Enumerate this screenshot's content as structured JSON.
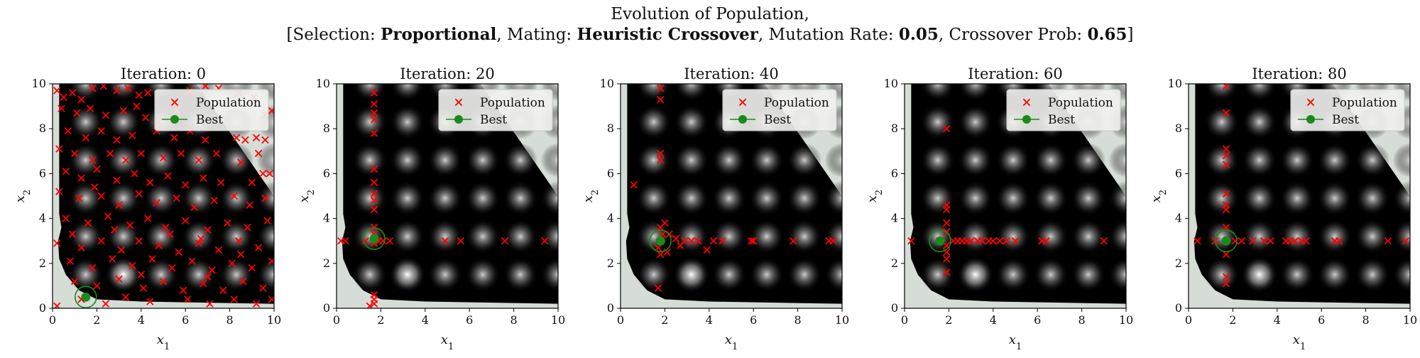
{
  "figure": {
    "title_line1": "Evolution of Population,",
    "title_parts": [
      {
        "text": "[Selection: ",
        "bold": false
      },
      {
        "text": "Proportional",
        "bold": true
      },
      {
        "text": ", Mating: ",
        "bold": false
      },
      {
        "text": "Heuristic Crossover",
        "bold": true
      },
      {
        "text": ", Mutation Rate: ",
        "bold": false
      },
      {
        "text": "0.05",
        "bold": true
      },
      {
        "text": ", Crossover Prob: ",
        "bold": false
      },
      {
        "text": "0.65",
        "bold": true
      },
      {
        "text": "]",
        "bold": false
      }
    ]
  },
  "colors": {
    "population": "#ff0000",
    "best": "#1a8a1a",
    "infeasible": "#d6dcd6",
    "background": "#000000"
  },
  "chart_data": [
    {
      "type": "scatter",
      "title": "Iteration: 0",
      "xlabel": "x1",
      "ylabel": "x2",
      "xlim": [
        0,
        10
      ],
      "ylim": [
        0,
        10
      ],
      "xticks": [
        0,
        2,
        4,
        6,
        8,
        10
      ],
      "yticks": [
        0,
        2,
        4,
        6,
        8,
        10
      ],
      "legend": {
        "position": "upper-right",
        "entries": [
          "Population",
          "Best"
        ]
      },
      "best": [
        1.5,
        0.5
      ],
      "population": [
        [
          0.2,
          9.7
        ],
        [
          0.5,
          9.4
        ],
        [
          0.9,
          9.6
        ],
        [
          1.3,
          9.3
        ],
        [
          1.8,
          9.8
        ],
        [
          2.3,
          9.9
        ],
        [
          2.9,
          9.7
        ],
        [
          3.4,
          9.8
        ],
        [
          3.9,
          9.5
        ],
        [
          4.3,
          9.6
        ],
        [
          0.4,
          8.9
        ],
        [
          1.1,
          8.7
        ],
        [
          1.7,
          8.9
        ],
        [
          2.4,
          8.6
        ],
        [
          3.2,
          8.8
        ],
        [
          4.2,
          8.5
        ],
        [
          6.2,
          9.7
        ],
        [
          6.9,
          9.9
        ],
        [
          7.5,
          9.8
        ],
        [
          8.4,
          9.6
        ],
        [
          9.1,
          9.4
        ],
        [
          9.6,
          8.6
        ],
        [
          9.9,
          8.8
        ],
        [
          8.3,
          7.6
        ],
        [
          8.7,
          7.5
        ],
        [
          9.2,
          7.6
        ],
        [
          9.6,
          7.5
        ],
        [
          0.7,
          7.9
        ],
        [
          1.5,
          7.6
        ],
        [
          2.2,
          7.9
        ],
        [
          2.9,
          7.5
        ],
        [
          3.6,
          7.7
        ],
        [
          4.7,
          7.9
        ],
        [
          5.5,
          7.6
        ],
        [
          6.2,
          7.9
        ],
        [
          6.9,
          7.5
        ],
        [
          0.3,
          7.1
        ],
        [
          1.0,
          6.9
        ],
        [
          1.8,
          6.6
        ],
        [
          2.6,
          6.9
        ],
        [
          3.3,
          6.6
        ],
        [
          4.0,
          6.9
        ],
        [
          5.0,
          6.7
        ],
        [
          5.8,
          6.9
        ],
        [
          6.6,
          6.6
        ],
        [
          7.4,
          6.9
        ],
        [
          0.6,
          6.1
        ],
        [
          1.3,
          5.8
        ],
        [
          2.0,
          6.2
        ],
        [
          2.9,
          5.7
        ],
        [
          3.7,
          6.0
        ],
        [
          4.4,
          5.6
        ],
        [
          5.2,
          5.9
        ],
        [
          6.0,
          5.5
        ],
        [
          6.8,
          5.8
        ],
        [
          7.6,
          5.6
        ],
        [
          9.5,
          6.0
        ],
        [
          9.8,
          6.0
        ],
        [
          0.3,
          5.2
        ],
        [
          1.2,
          4.9
        ],
        [
          2.2,
          5.0
        ],
        [
          3.0,
          4.6
        ],
        [
          3.9,
          5.1
        ],
        [
          4.7,
          4.7
        ],
        [
          5.6,
          4.9
        ],
        [
          6.4,
          4.5
        ],
        [
          7.3,
          4.8
        ],
        [
          8.2,
          5.0
        ],
        [
          8.9,
          4.6
        ],
        [
          9.6,
          4.9
        ],
        [
          0.6,
          4.0
        ],
        [
          1.6,
          3.8
        ],
        [
          2.5,
          4.1
        ],
        [
          3.5,
          3.7
        ],
        [
          4.3,
          4.0
        ],
        [
          5.1,
          3.6
        ],
        [
          6.0,
          3.9
        ],
        [
          7.0,
          3.5
        ],
        [
          7.9,
          3.8
        ],
        [
          8.8,
          3.6
        ],
        [
          9.7,
          3.9
        ],
        [
          0.2,
          2.9
        ],
        [
          1.3,
          2.7
        ],
        [
          2.2,
          3.0
        ],
        [
          3.1,
          2.6
        ],
        [
          3.9,
          3.0
        ],
        [
          4.8,
          2.8
        ],
        [
          5.7,
          2.5
        ],
        [
          6.6,
          2.9
        ],
        [
          7.5,
          2.6
        ],
        [
          8.4,
          3.0
        ],
        [
          9.3,
          2.7
        ],
        [
          0.8,
          2.1
        ],
        [
          1.8,
          1.8
        ],
        [
          2.7,
          2.2
        ],
        [
          3.6,
          1.9
        ],
        [
          4.5,
          2.2
        ],
        [
          5.4,
          1.8
        ],
        [
          6.3,
          2.1
        ],
        [
          7.2,
          1.7
        ],
        [
          8.1,
          2.0
        ],
        [
          9.0,
          1.8
        ],
        [
          9.9,
          2.1
        ],
        [
          1.0,
          1.2
        ],
        [
          2.0,
          1.0
        ],
        [
          3.0,
          1.3
        ],
        [
          4.1,
          0.9
        ],
        [
          5.0,
          1.2
        ],
        [
          5.9,
          0.8
        ],
        [
          6.8,
          1.1
        ],
        [
          7.7,
          0.8
        ],
        [
          8.6,
          1.2
        ],
        [
          9.5,
          0.9
        ],
        [
          1.3,
          0.4
        ],
        [
          2.4,
          0.2
        ],
        [
          3.3,
          0.5
        ],
        [
          4.4,
          0.3
        ],
        [
          6.1,
          0.4
        ],
        [
          7.1,
          0.2
        ],
        [
          8.2,
          0.4
        ],
        [
          9.2,
          0.2
        ],
        [
          0.2,
          0.1
        ],
        [
          9.9,
          0.4
        ],
        [
          9.0,
          5.6
        ],
        [
          8.5,
          6.5
        ],
        [
          9.3,
          6.9
        ],
        [
          4.8,
          8.3
        ],
        [
          5.6,
          8.8
        ],
        [
          3.8,
          9.0
        ],
        [
          1.9,
          5.4
        ],
        [
          2.8,
          3.5
        ],
        [
          0.9,
          3.3
        ],
        [
          6.7,
          3.1
        ],
        [
          8.5,
          2.4
        ],
        [
          4.0,
          1.5
        ],
        [
          7.0,
          1.4
        ],
        [
          5.3,
          3.3
        ]
      ]
    },
    {
      "type": "scatter",
      "title": "Iteration: 20",
      "xlabel": "x1",
      "ylabel": "x2",
      "xlim": [
        0,
        10
      ],
      "ylim": [
        0,
        10
      ],
      "xticks": [
        0,
        2,
        4,
        6,
        8,
        10
      ],
      "yticks": [
        0,
        2,
        4,
        6,
        8,
        10
      ],
      "legend": {
        "position": "upper-right",
        "entries": [
          "Population",
          "Best"
        ]
      },
      "best": [
        1.7,
        3.1
      ],
      "population": [
        [
          1.7,
          9.6
        ],
        [
          1.7,
          9.1
        ],
        [
          1.7,
          8.7
        ],
        [
          1.7,
          8.4
        ],
        [
          1.7,
          7.8
        ],
        [
          1.7,
          6.2
        ],
        [
          1.7,
          5.6
        ],
        [
          1.7,
          5.1
        ],
        [
          1.7,
          4.8
        ],
        [
          1.7,
          4.4
        ],
        [
          1.7,
          3.6
        ],
        [
          1.7,
          3.3
        ],
        [
          1.7,
          2.9
        ],
        [
          1.7,
          0.6
        ],
        [
          1.7,
          0.4
        ],
        [
          1.7,
          0.2
        ],
        [
          1.5,
          0.1
        ],
        [
          0.2,
          3.0
        ],
        [
          0.4,
          3.0
        ],
        [
          1.3,
          3.0
        ],
        [
          1.9,
          3.0
        ],
        [
          2.1,
          3.0
        ],
        [
          2.4,
          3.0
        ],
        [
          4.9,
          3.0
        ],
        [
          5.6,
          3.0
        ],
        [
          7.6,
          3.0
        ],
        [
          9.4,
          3.0
        ]
      ]
    },
    {
      "type": "scatter",
      "title": "Iteration: 40",
      "xlabel": "x1",
      "ylabel": "x2",
      "xlim": [
        0,
        10
      ],
      "ylim": [
        0,
        10
      ],
      "xticks": [
        0,
        2,
        4,
        6,
        8,
        10
      ],
      "yticks": [
        0,
        2,
        4,
        6,
        8,
        10
      ],
      "legend": {
        "position": "upper-right",
        "entries": [
          "Population",
          "Best"
        ]
      },
      "best": [
        1.8,
        3.0
      ],
      "population": [
        [
          1.8,
          9.8
        ],
        [
          1.8,
          9.3
        ],
        [
          1.8,
          6.9
        ],
        [
          1.8,
          6.6
        ],
        [
          0.6,
          5.5
        ],
        [
          1.8,
          3.6
        ],
        [
          2.0,
          3.8
        ],
        [
          1.9,
          3.3
        ],
        [
          1.7,
          2.7
        ],
        [
          1.8,
          2.4
        ],
        [
          2.1,
          2.5
        ],
        [
          2.5,
          3.1
        ],
        [
          2.2,
          3.3
        ],
        [
          2.7,
          2.8
        ],
        [
          2.9,
          3.0
        ],
        [
          3.2,
          3.0
        ],
        [
          3.5,
          3.0
        ],
        [
          4.2,
          3.0
        ],
        [
          4.6,
          3.0
        ],
        [
          5.9,
          3.0
        ],
        [
          6.0,
          3.0
        ],
        [
          7.8,
          3.0
        ],
        [
          9.4,
          3.0
        ],
        [
          9.6,
          3.0
        ],
        [
          3.9,
          2.6
        ],
        [
          1.7,
          0.9
        ]
      ]
    },
    {
      "type": "scatter",
      "title": "Iteration: 60",
      "xlabel": "x1",
      "ylabel": "x2",
      "xlim": [
        0,
        10
      ],
      "ylim": [
        0,
        10
      ],
      "xticks": [
        0,
        2,
        4,
        6,
        8,
        10
      ],
      "yticks": [
        0,
        2,
        4,
        6,
        8,
        10
      ],
      "legend": {
        "position": "upper-right",
        "entries": [
          "Population",
          "Best"
        ]
      },
      "best": [
        1.6,
        3.0
      ],
      "population": [
        [
          1.9,
          8.0
        ],
        [
          1.9,
          4.6
        ],
        [
          1.9,
          4.4
        ],
        [
          1.9,
          3.8
        ],
        [
          1.9,
          3.4
        ],
        [
          1.9,
          2.8
        ],
        [
          1.9,
          2.5
        ],
        [
          1.9,
          2.2
        ],
        [
          1.9,
          1.6
        ],
        [
          0.3,
          3.0
        ],
        [
          1.6,
          3.0
        ],
        [
          2.2,
          3.0
        ],
        [
          2.4,
          3.0
        ],
        [
          2.6,
          3.0
        ],
        [
          2.8,
          3.0
        ],
        [
          3.0,
          3.0
        ],
        [
          3.3,
          3.0
        ],
        [
          3.5,
          3.0
        ],
        [
          3.8,
          3.0
        ],
        [
          4.0,
          3.0
        ],
        [
          4.3,
          3.0
        ],
        [
          4.6,
          3.0
        ],
        [
          5.0,
          3.0
        ],
        [
          6.2,
          3.0
        ],
        [
          6.4,
          3.0
        ],
        [
          9.0,
          3.0
        ]
      ]
    },
    {
      "type": "scatter",
      "title": "Iteration: 80",
      "xlabel": "x1",
      "ylabel": "x2",
      "xlim": [
        0,
        10
      ],
      "ylim": [
        0,
        10
      ],
      "xticks": [
        0,
        2,
        4,
        6,
        8,
        10
      ],
      "yticks": [
        0,
        2,
        4,
        6,
        8,
        10
      ],
      "legend": {
        "position": "upper-right",
        "entries": [
          "Population",
          "Best"
        ]
      },
      "best": [
        1.7,
        3.0
      ],
      "population": [
        [
          1.7,
          9.9
        ],
        [
          1.7,
          8.7
        ],
        [
          1.7,
          7.1
        ],
        [
          1.7,
          6.8
        ],
        [
          1.7,
          6.4
        ],
        [
          1.7,
          5.1
        ],
        [
          1.7,
          4.6
        ],
        [
          1.7,
          4.4
        ],
        [
          1.7,
          3.6
        ],
        [
          1.7,
          2.4
        ],
        [
          1.7,
          1.4
        ],
        [
          1.7,
          1.1
        ],
        [
          0.4,
          3.0
        ],
        [
          1.2,
          3.0
        ],
        [
          2.1,
          3.0
        ],
        [
          2.4,
          3.0
        ],
        [
          2.9,
          3.0
        ],
        [
          3.4,
          3.0
        ],
        [
          3.7,
          3.0
        ],
        [
          4.4,
          3.0
        ],
        [
          4.6,
          3.0
        ],
        [
          4.8,
          3.0
        ],
        [
          5.1,
          3.0
        ],
        [
          5.3,
          3.0
        ],
        [
          6.6,
          3.0
        ],
        [
          6.8,
          3.0
        ],
        [
          9.0,
          3.0
        ],
        [
          9.8,
          3.0
        ]
      ]
    }
  ]
}
